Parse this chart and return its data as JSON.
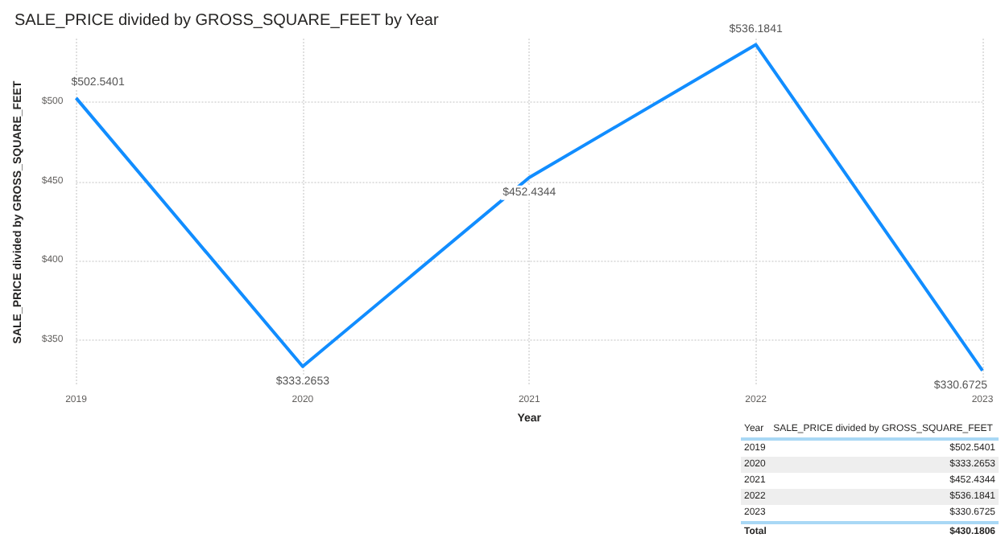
{
  "chart_data": {
    "type": "line",
    "title": "SALE_PRICE divided by GROSS_SQUARE_FEET by Year",
    "xlabel": "Year",
    "ylabel": "SALE_PRICE divided by GROSS_SQUARE_FEET",
    "categories": [
      "2019",
      "2020",
      "2021",
      "2022",
      "2023"
    ],
    "series": [
      {
        "color": "#118dff",
        "values": [
          502.5401,
          333.2653,
          452.4344,
          536.1841,
          330.6725
        ],
        "value_labels": [
          "$502.5401",
          "$333.2653",
          "$452.4344",
          "$536.1841",
          "$330.6725"
        ]
      }
    ],
    "ylim": [
      321,
      540
    ],
    "yticks": [
      {
        "value": 350,
        "label": "$350"
      },
      {
        "value": 400,
        "label": "$400"
      },
      {
        "value": 450,
        "label": "$450"
      },
      {
        "value": 500,
        "label": "$500"
      }
    ],
    "grid": true,
    "marker": "none",
    "line_style": "solid",
    "annotations": [
      "Year",
      "SALE_PRICE divided by GROSS_SQUARE_FEET",
      "Total",
      "$430.1806"
    ]
  }
}
